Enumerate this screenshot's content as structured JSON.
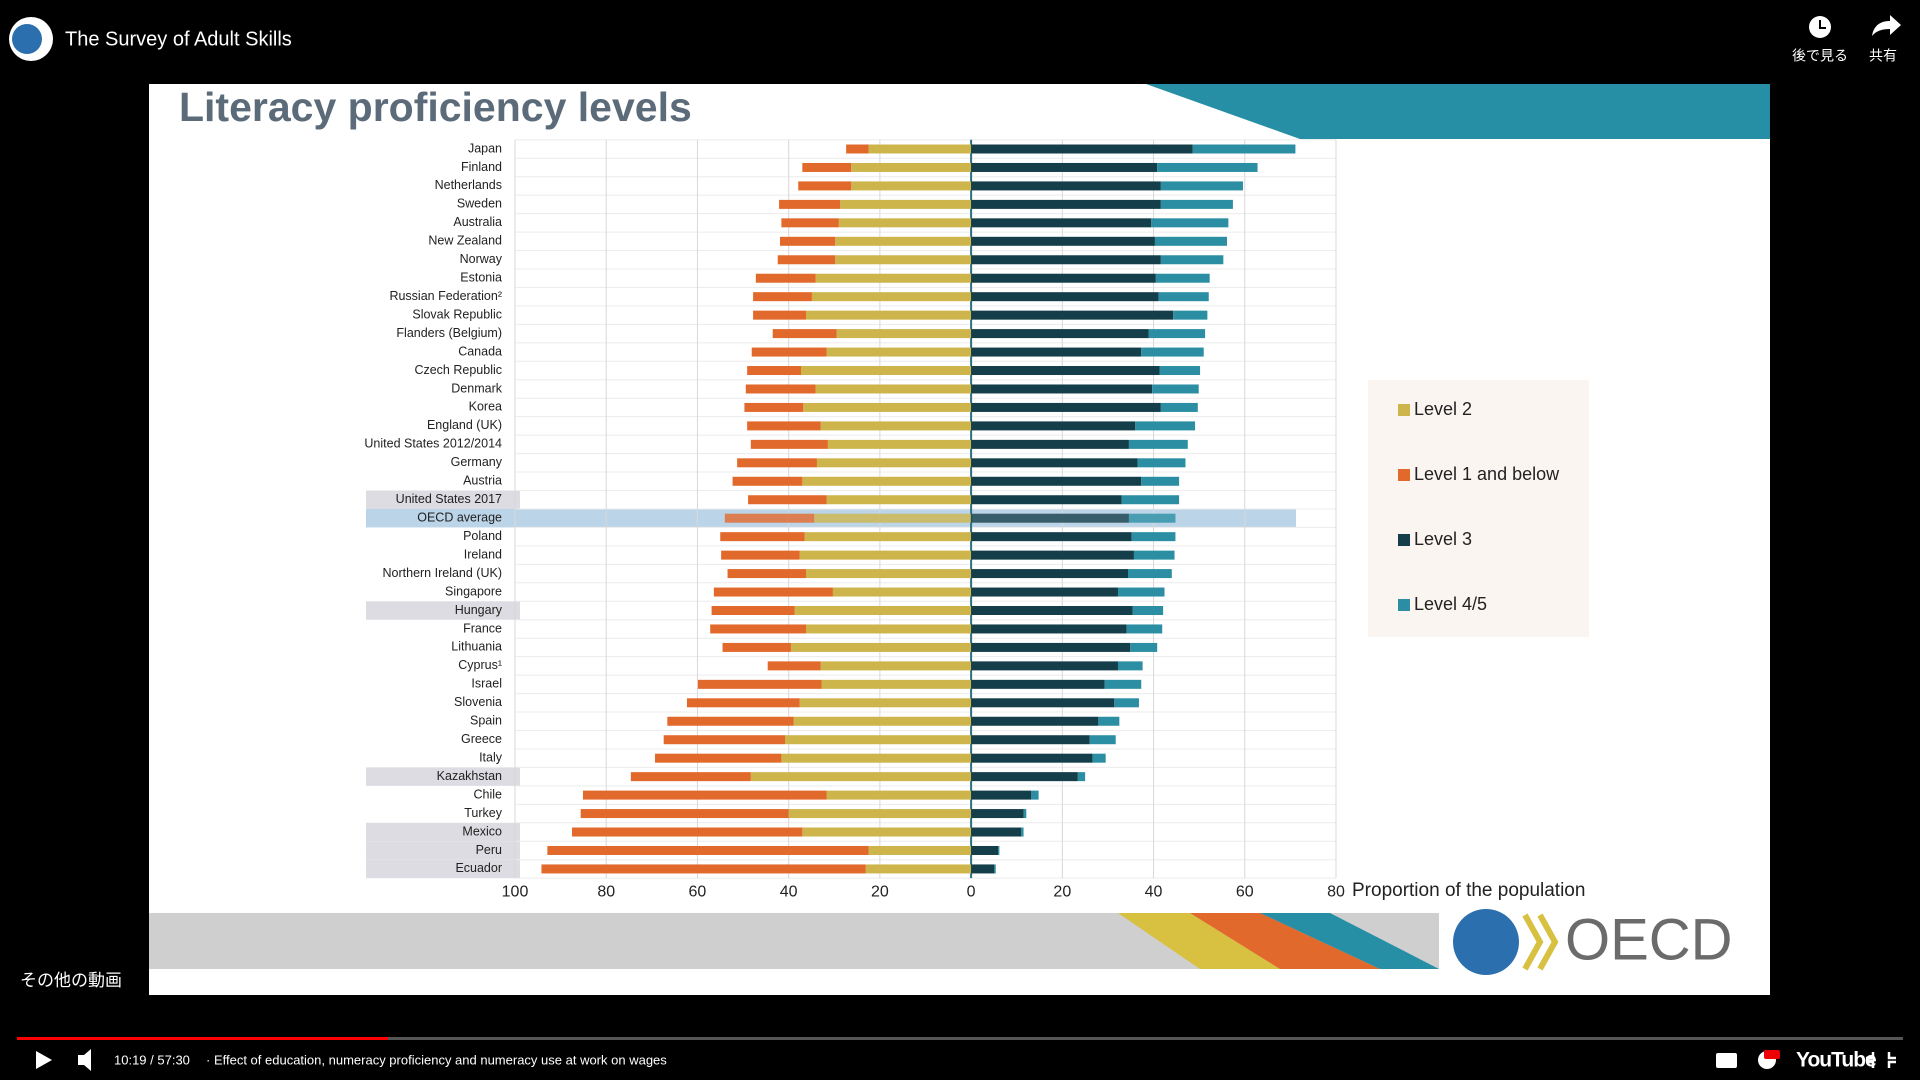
{
  "player": {
    "video_title": "The Survey of Adult Skills",
    "watch_later": "後で見る",
    "share": "共有",
    "more_videos": "その他の動画",
    "time": "10:19 / 57:30",
    "chapter": "· Effect of education, numeracy proficiency and numeracy use at work on wages",
    "brand": "YouTube"
  },
  "slide": {
    "logo": "OECD"
  },
  "chart_data": {
    "type": "diverging-stacked-bar",
    "title": "Literacy proficiency levels",
    "x_label": "Proportion of the population",
    "categories": [
      "Japan",
      "Finland",
      "Netherlands",
      "Sweden",
      "Australia",
      "New Zealand",
      "Norway",
      "Estonia",
      "Russian Federation²",
      "Slovak Republic",
      "Flanders (Belgium)",
      "Canada",
      "Czech Republic",
      "Denmark",
      "Korea",
      "England (UK)",
      "United States 2012/2014",
      "Germany",
      "Austria",
      "United States 2017",
      "OECD average",
      "Poland",
      "Ireland",
      "Northern Ireland (UK)",
      "Singapore",
      "Hungary",
      "France",
      "Lithuania",
      "Cyprus¹",
      "Israel",
      "Slovenia",
      "Spain",
      "Greece",
      "Italy",
      "Kazakhstan",
      "Chile",
      "Turkey",
      "Mexico",
      "Peru",
      "Ecuador"
    ],
    "series": [
      {
        "name": "Level 2",
        "color": "#cdb54b",
        "values": [
          -22.5,
          -26.3,
          -26.3,
          -28.7,
          -29,
          -29.8,
          -29.8,
          -34.1,
          -34.9,
          -36.2,
          -29.5,
          -31.7,
          -37.3,
          -34.1,
          -36.8,
          -33,
          -31.4,
          -33.8,
          -37,
          -31.7,
          -34.4,
          -36.5,
          -37.6,
          -36.2,
          -30.3,
          -38.7,
          -36.2,
          -39.5,
          -33,
          -32.8,
          -37.6,
          -38.9,
          -40.8,
          -41.6,
          -48.3,
          -31.7,
          -40,
          -37,
          -22.5,
          -23.1
        ]
      },
      {
        "name": "Level 1 and below",
        "color": "#e2692c",
        "values": [
          -4.9,
          -10.7,
          -11.6,
          -13.4,
          -12.6,
          -12.1,
          -12.6,
          -13.1,
          -12.9,
          -11.6,
          -14,
          -16.4,
          -11.8,
          -15.3,
          -12.9,
          -16.1,
          -16.9,
          -17.5,
          -15.3,
          -17.2,
          -19.6,
          -18.5,
          -17.2,
          -17.2,
          -26.1,
          -18.2,
          -21,
          -15,
          -11.6,
          -27.1,
          -24.7,
          -27.7,
          -26.6,
          -27.7,
          -26.3,
          -53.4,
          -45.6,
          -50.5,
          -70.4,
          -71.1
        ]
      },
      {
        "name": "Level 3",
        "color": "#143e49",
        "values": [
          48.6,
          40.8,
          41.6,
          41.6,
          39.5,
          40.3,
          41.6,
          40.5,
          41.1,
          44.3,
          38.9,
          37.3,
          41.3,
          39.7,
          41.6,
          36,
          34.6,
          36.5,
          37.3,
          33,
          34.6,
          35.2,
          35.7,
          34.4,
          32.2,
          35.4,
          34.1,
          34.9,
          32.2,
          29.3,
          31.4,
          27.9,
          26,
          26.6,
          23.4,
          13.2,
          11.5,
          11,
          5.9,
          5.1
        ]
      },
      {
        "name": "Level 4/5",
        "color": "#2b8ea3",
        "values": [
          22.5,
          22,
          18,
          15.8,
          16.9,
          15.8,
          13.7,
          11.8,
          11,
          7.5,
          12.4,
          13.7,
          8.9,
          10.2,
          8.1,
          13.1,
          12.9,
          10.5,
          8.3,
          12.6,
          10.2,
          9.6,
          8.9,
          9.6,
          10.2,
          6.7,
          7.8,
          5.9,
          5.4,
          8,
          5.4,
          4.6,
          5.7,
          2.9,
          1.6,
          1.6,
          0.6,
          0.5,
          0.3,
          0.3
        ]
      }
    ],
    "xlim": [
      -100,
      80
    ],
    "xticks": [
      {
        "value": -100,
        "label": "100"
      },
      {
        "value": -80,
        "label": "80"
      },
      {
        "value": -60,
        "label": "60"
      },
      {
        "value": -40,
        "label": "40"
      },
      {
        "value": -20,
        "label": "20"
      },
      0,
      20,
      40,
      60,
      80
    ],
    "grid": true,
    "highlight_rows": [
      20
    ],
    "shaded_labels": [
      19,
      25,
      34,
      37,
      38,
      39
    ]
  }
}
